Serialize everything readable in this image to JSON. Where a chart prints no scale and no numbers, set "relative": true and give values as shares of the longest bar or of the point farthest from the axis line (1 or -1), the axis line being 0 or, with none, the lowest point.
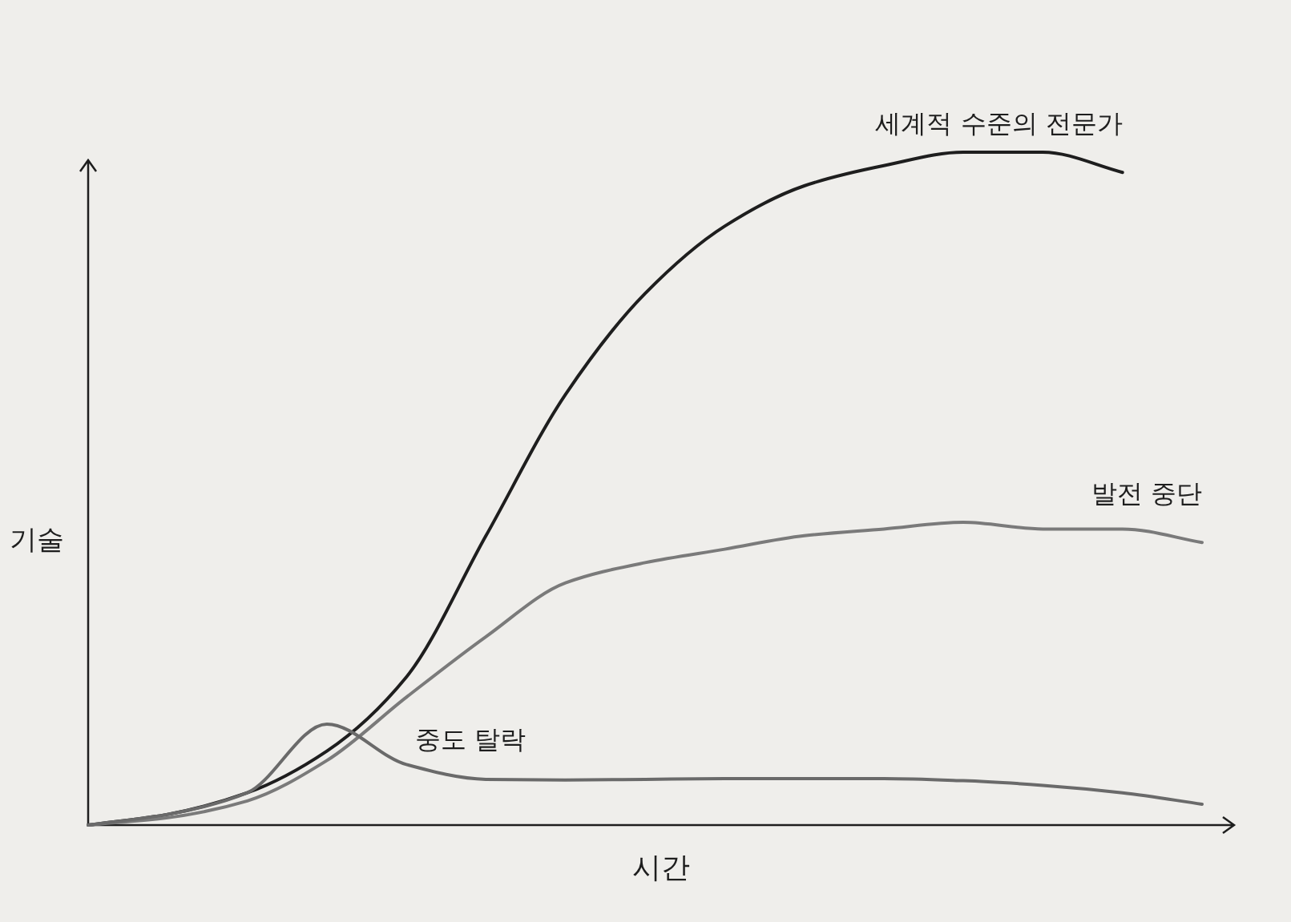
{
  "chart_data": {
    "type": "line",
    "relative": true,
    "xlabel": "시간",
    "ylabel": "기술",
    "categories": [
      null,
      null,
      null,
      null,
      null,
      null,
      null,
      null,
      null,
      null,
      null,
      null,
      null,
      null,
      null
    ],
    "series": [
      {
        "name": "세계적 수준의 전문가",
        "color": "#1e1e1e",
        "values": [
          0,
          0.016,
          0.048,
          0.11,
          0.22,
          0.43,
          0.64,
          0.79,
          0.89,
          0.95,
          0.98,
          1,
          1,
          0.97,
          null
        ]
      },
      {
        "name": "발전 중단",
        "color": "#7a7a7a",
        "values": [
          0,
          0.011,
          0.036,
          0.096,
          0.19,
          0.28,
          0.36,
          0.39,
          0.41,
          0.43,
          0.44,
          0.45,
          0.44,
          0.44,
          0.42
        ]
      },
      {
        "name": "중도 탈락",
        "color": "#6a6a6a",
        "values": [
          0,
          0.016,
          0.048,
          0.15,
          0.09,
          0.068,
          0.067,
          0.068,
          0.069,
          0.069,
          0.069,
          0.066,
          0.059,
          0.048,
          0.031
        ]
      }
    ]
  }
}
